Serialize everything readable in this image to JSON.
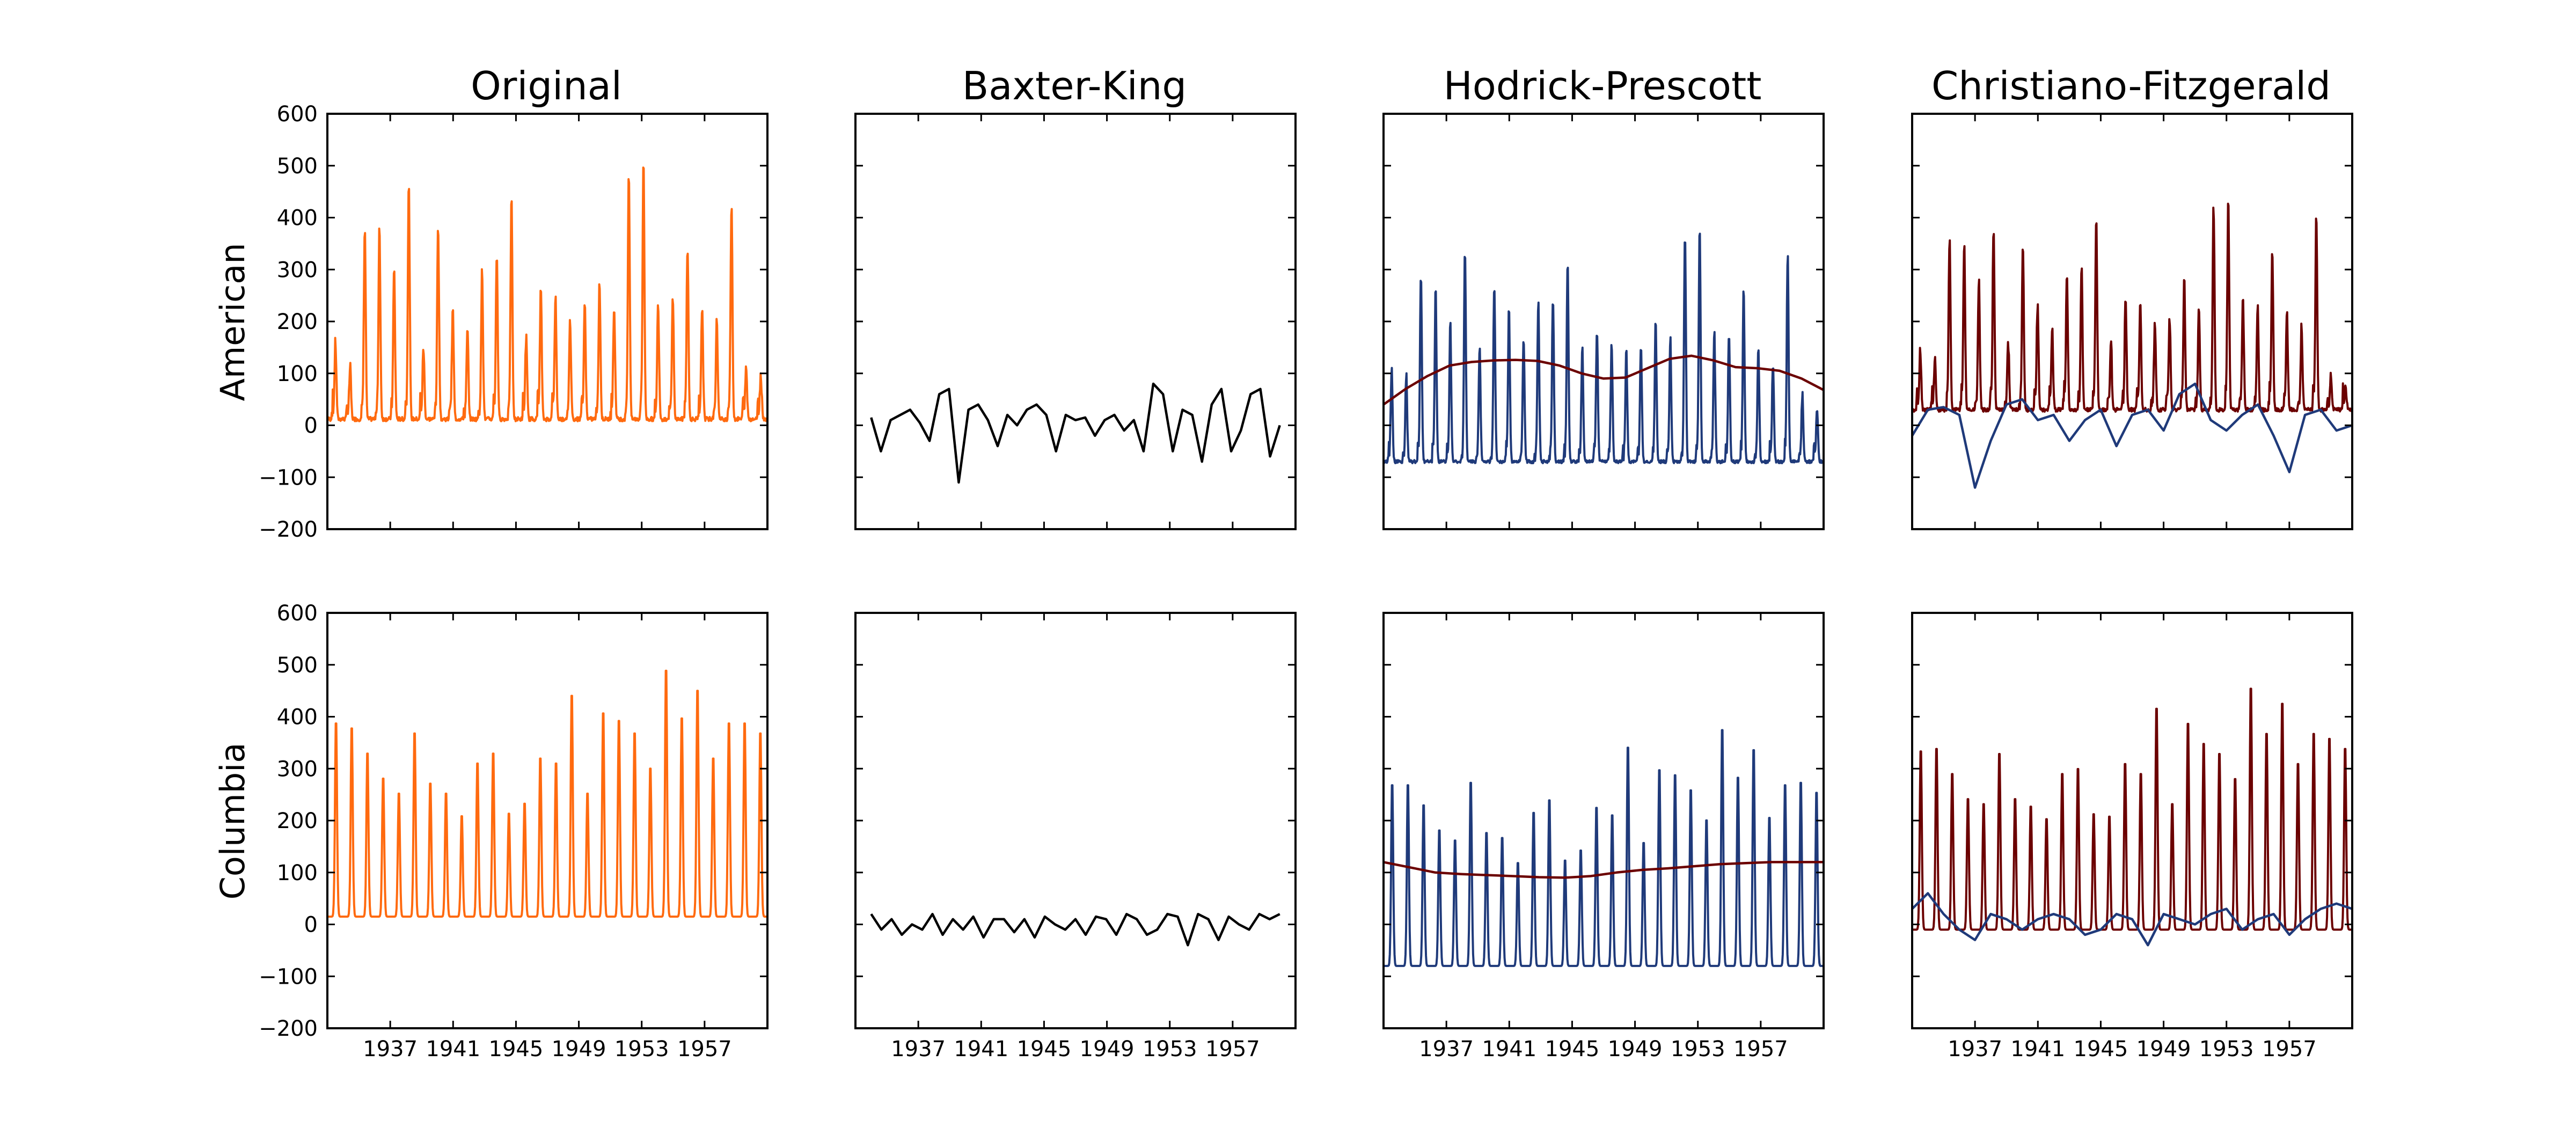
{
  "figure": {
    "column_titles": [
      "Original",
      "Baxter-King",
      "Hodrick-Prescott",
      "Christiano-Fitzgerald"
    ],
    "row_labels": [
      "American",
      "Columbia"
    ]
  },
  "colors": {
    "original": "#ff6a0f",
    "cycle": "#000000",
    "hp_cycle": "#1f3a7a",
    "trend": "#6b0000"
  },
  "chart_data": [
    {
      "type": "line",
      "row": "American",
      "column": "Original",
      "xlim": [
        1933,
        1961
      ],
      "ylim": [
        -200,
        600
      ],
      "xticks": [
        1937,
        1941,
        1945,
        1949,
        1953,
        1957
      ],
      "yticks": [
        -200,
        -100,
        0,
        100,
        200,
        300,
        400,
        500,
        600
      ],
      "grid": false,
      "series": [
        {
          "color_key": "original",
          "amplitude": 110,
          "noise": 0.55,
          "baseline": 12,
          "peaks": [
            160,
            110,
            380,
            380,
            300,
            460,
            150,
            390,
            220,
            180,
            300,
            330,
            435,
            170,
            260,
            250,
            200,
            230,
            280,
            230,
            490,
            515,
            240,
            240,
            350,
            230,
            200,
            425,
            110,
            100
          ],
          "x_start": 1933,
          "x_end": 1961,
          "kind": "seasonal"
        }
      ]
    },
    {
      "type": "line",
      "row": "American",
      "column": "Baxter-King",
      "xlim": [
        1933,
        1961
      ],
      "ylim": [
        -200,
        600
      ],
      "xticks": [
        1937,
        1941,
        1945,
        1949,
        1953,
        1957
      ],
      "yticks": [
        -200,
        -100,
        0,
        100,
        200,
        300,
        400,
        500,
        600
      ],
      "grid": false,
      "series": [
        {
          "color_key": "cycle",
          "x_start": 1934.0,
          "x_end": 1960.0,
          "kind": "path",
          "values": [
            15,
            -50,
            10,
            20,
            30,
            5,
            -30,
            60,
            70,
            -110,
            30,
            40,
            10,
            -40,
            20,
            0,
            30,
            40,
            20,
            -50,
            20,
            10,
            15,
            -20,
            10,
            20,
            -10,
            10,
            -50,
            80,
            60,
            -50,
            30,
            20,
            -70,
            40,
            70,
            -50,
            -10,
            60,
            70,
            -60,
            0
          ]
        }
      ]
    },
    {
      "type": "line",
      "row": "American",
      "column": "Hodrick-Prescott",
      "xlim": [
        1933,
        1961
      ],
      "ylim": [
        -200,
        600
      ],
      "xticks": [
        1937,
        1941,
        1945,
        1949,
        1953,
        1957
      ],
      "yticks": [
        -200,
        -100,
        0,
        100,
        200,
        300,
        400,
        500,
        600
      ],
      "grid": false,
      "series": [
        {
          "color_key": "hp_cycle",
          "amplitude": 80,
          "noise": 0.55,
          "baseline": -70,
          "peaks": [
            110,
            100,
            290,
            260,
            200,
            340,
            150,
            270,
            220,
            170,
            240,
            250,
            320,
            150,
            190,
            160,
            150,
            150,
            200,
            170,
            360,
            380,
            180,
            170,
            260,
            150,
            120,
            330,
            60,
            30
          ],
          "x_start": 1933,
          "x_end": 1961,
          "kind": "seasonal"
        },
        {
          "color_key": "trend",
          "x_start": 1933,
          "x_end": 1961,
          "kind": "path",
          "values": [
            40,
            70,
            95,
            115,
            122,
            125,
            126,
            124,
            115,
            100,
            90,
            92,
            110,
            128,
            134,
            125,
            112,
            110,
            105,
            90,
            68
          ]
        }
      ]
    },
    {
      "type": "line",
      "row": "American",
      "column": "Christiano-Fitzgerald",
      "xlim": [
        1933,
        1961
      ],
      "ylim": [
        -200,
        600
      ],
      "xticks": [
        1937,
        1941,
        1945,
        1949,
        1953,
        1957
      ],
      "yticks": [
        -200,
        -100,
        0,
        100,
        200,
        300,
        400,
        500,
        600
      ],
      "grid": false,
      "series": [
        {
          "color_key": "trend",
          "amplitude": 100,
          "noise": 0.55,
          "baseline": 30,
          "peaks": [
            150,
            130,
            360,
            350,
            280,
            380,
            160,
            340,
            230,
            180,
            300,
            300,
            400,
            170,
            240,
            230,
            200,
            210,
            280,
            220,
            420,
            440,
            240,
            230,
            330,
            220,
            190,
            400,
            100,
            80
          ],
          "x_start": 1933,
          "x_end": 1961,
          "kind": "seasonal"
        },
        {
          "color_key": "hp_cycle",
          "x_start": 1933,
          "x_end": 1961,
          "kind": "path",
          "values": [
            -20,
            30,
            35,
            20,
            -120,
            -30,
            40,
            50,
            10,
            20,
            -30,
            10,
            30,
            -40,
            20,
            30,
            -10,
            60,
            80,
            10,
            -10,
            20,
            40,
            -20,
            -90,
            20,
            30,
            -10,
            0
          ]
        }
      ]
    },
    {
      "type": "line",
      "row": "Columbia",
      "column": "Original",
      "xlim": [
        1933,
        1961
      ],
      "ylim": [
        -200,
        600
      ],
      "xticks": [
        1937,
        1941,
        1945,
        1949,
        1953,
        1957
      ],
      "yticks": [
        -200,
        -100,
        0,
        100,
        200,
        300,
        400,
        500,
        600
      ],
      "grid": false,
      "series": [
        {
          "color_key": "original",
          "amplitude": 0,
          "noise": 0.1,
          "baseline": 15,
          "peaks": [
            400,
            390,
            340,
            290,
            260,
            380,
            280,
            260,
            215,
            320,
            340,
            220,
            240,
            330,
            320,
            455,
            260,
            420,
            405,
            380,
            310,
            505,
            410,
            465,
            330,
            400,
            400,
            380
          ],
          "x_start": 1933,
          "x_end": 1961,
          "kind": "seasonal"
        }
      ]
    },
    {
      "type": "line",
      "row": "Columbia",
      "column": "Baxter-King",
      "xlim": [
        1933,
        1961
      ],
      "ylim": [
        -200,
        600
      ],
      "xticks": [
        1937,
        1941,
        1945,
        1949,
        1953,
        1957
      ],
      "yticks": [
        -200,
        -100,
        0,
        100,
        200,
        300,
        400,
        500,
        600
      ],
      "grid": false,
      "series": [
        {
          "color_key": "cycle",
          "x_start": 1934.0,
          "x_end": 1960.0,
          "kind": "path",
          "values": [
            20,
            -10,
            10,
            -20,
            0,
            -10,
            20,
            -20,
            10,
            -10,
            15,
            -25,
            10,
            10,
            -15,
            10,
            -25,
            15,
            0,
            -10,
            10,
            -20,
            15,
            10,
            -20,
            20,
            10,
            -20,
            -10,
            20,
            15,
            -40,
            20,
            10,
            -30,
            15,
            0,
            -10,
            20,
            10,
            20
          ]
        }
      ]
    },
    {
      "type": "line",
      "row": "Columbia",
      "column": "Hodrick-Prescott",
      "xlim": [
        1933,
        1961
      ],
      "ylim": [
        -200,
        600
      ],
      "xticks": [
        1937,
        1941,
        1945,
        1949,
        1953,
        1957
      ],
      "yticks": [
        -200,
        -100,
        0,
        100,
        200,
        300,
        400,
        500,
        600
      ],
      "grid": false,
      "series": [
        {
          "color_key": "hp_cycle",
          "amplitude": 0,
          "noise": 0.1,
          "baseline": -80,
          "peaks": [
            280,
            280,
            240,
            190,
            170,
            285,
            185,
            175,
            125,
            225,
            250,
            130,
            150,
            235,
            220,
            355,
            165,
            310,
            300,
            270,
            210,
            390,
            295,
            350,
            215,
            280,
            285,
            265
          ],
          "x_start": 1933,
          "x_end": 1961,
          "kind": "seasonal"
        },
        {
          "color_key": "trend",
          "x_start": 1933,
          "x_end": 1961,
          "kind": "path",
          "values": [
            120,
            110,
            100,
            97,
            95,
            93,
            91,
            90,
            93,
            100,
            105,
            108,
            112,
            116,
            118,
            120,
            120,
            120
          ]
        }
      ]
    },
    {
      "type": "line",
      "row": "Columbia",
      "column": "Christiano-Fitzgerald",
      "xlim": [
        1933,
        1961
      ],
      "ylim": [
        -200,
        600
      ],
      "xticks": [
        1937,
        1941,
        1945,
        1949,
        1953,
        1957
      ],
      "yticks": [
        -200,
        -100,
        0,
        100,
        200,
        300,
        400,
        500,
        600
      ],
      "grid": false,
      "series": [
        {
          "color_key": "trend",
          "amplitude": 0,
          "noise": 0.1,
          "baseline": -10,
          "peaks": [
            345,
            350,
            300,
            250,
            240,
            340,
            250,
            235,
            210,
            300,
            310,
            220,
            215,
            320,
            300,
            430,
            240,
            400,
            360,
            340,
            290,
            470,
            380,
            440,
            320,
            380,
            370,
            350
          ],
          "x_start": 1933,
          "x_end": 1961,
          "kind": "seasonal"
        },
        {
          "color_key": "hp_cycle",
          "x_start": 1933,
          "x_end": 1961,
          "kind": "path",
          "values": [
            30,
            60,
            20,
            -10,
            -30,
            20,
            10,
            -10,
            10,
            20,
            10,
            -20,
            -10,
            20,
            10,
            -40,
            20,
            10,
            0,
            20,
            30,
            -10,
            10,
            20,
            -20,
            10,
            30,
            40,
            30
          ]
        }
      ]
    }
  ]
}
